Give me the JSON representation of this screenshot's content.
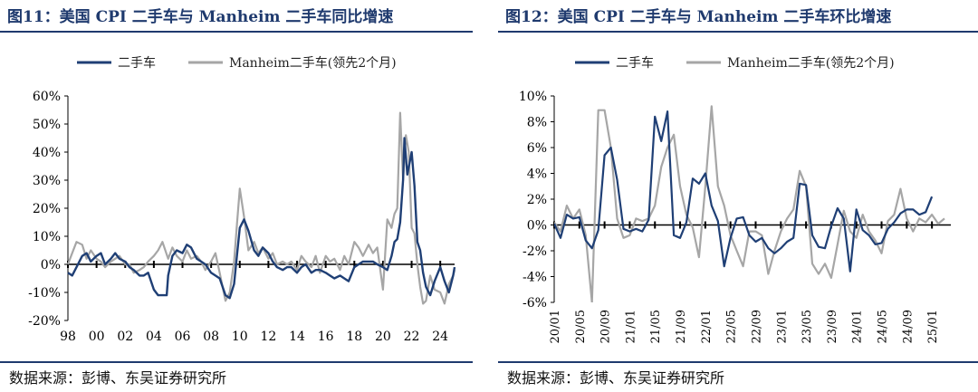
{
  "left": {
    "figure_title": "图11：美国 CPI 二手车与 Manheim 二手车同比增速",
    "source": "数据来源：彭博、东吴证券研究所"
  },
  "right": {
    "figure_title": "图12：美国 CPI 二手车与 Manheim 二手车环比增速",
    "source": "数据来源：彭博、东吴证券研究所"
  },
  "colors": {
    "series1": "#1f3f75",
    "series2": "#a6a6a6",
    "title": "#1f3a6e"
  },
  "chart_data": [
    {
      "type": "line",
      "legend_position": "top",
      "grid": false,
      "ylim": [
        -20,
        60
      ],
      "yticks": [
        -20,
        -10,
        0,
        10,
        20,
        30,
        40,
        50,
        60
      ],
      "ytick_labels": [
        "-20%",
        "-10%",
        "0%",
        "10%",
        "20%",
        "30%",
        "40%",
        "50%",
        "60%"
      ],
      "xlim": [
        1998,
        2025
      ],
      "xticks": [
        1998,
        2000,
        2002,
        2004,
        2006,
        2008,
        2010,
        2012,
        2014,
        2016,
        2018,
        2020,
        2022,
        2024
      ],
      "xtick_labels": [
        "98",
        "00",
        "02",
        "04",
        "06",
        "08",
        "10",
        "12",
        "14",
        "16",
        "18",
        "20",
        "22",
        "24"
      ],
      "series": [
        {
          "name": "二手车",
          "color": "#1f3f75",
          "points": [
            [
              1998.0,
              -3
            ],
            [
              1998.3,
              -4
            ],
            [
              1998.6,
              -1
            ],
            [
              1999.0,
              3
            ],
            [
              1999.3,
              4
            ],
            [
              1999.6,
              1
            ],
            [
              2000.0,
              3
            ],
            [
              2000.3,
              4
            ],
            [
              2000.6,
              0
            ],
            [
              2001.0,
              2
            ],
            [
              2001.3,
              4
            ],
            [
              2001.6,
              2
            ],
            [
              2002.0,
              1
            ],
            [
              2002.3,
              -1
            ],
            [
              2002.6,
              -2
            ],
            [
              2003.0,
              -4
            ],
            [
              2003.3,
              -4
            ],
            [
              2003.6,
              -3
            ],
            [
              2004.0,
              -9
            ],
            [
              2004.3,
              -11
            ],
            [
              2004.6,
              -11
            ],
            [
              2004.9,
              -11
            ],
            [
              2005.0,
              -4
            ],
            [
              2005.3,
              3
            ],
            [
              2005.6,
              5
            ],
            [
              2006.0,
              4
            ],
            [
              2006.3,
              7
            ],
            [
              2006.6,
              6
            ],
            [
              2007.0,
              2
            ],
            [
              2007.3,
              1
            ],
            [
              2007.6,
              0
            ],
            [
              2008.0,
              -3
            ],
            [
              2008.3,
              -4
            ],
            [
              2008.6,
              -5
            ],
            [
              2009.0,
              -11
            ],
            [
              2009.3,
              -12
            ],
            [
              2009.6,
              -7
            ],
            [
              2009.8,
              3
            ],
            [
              2010.0,
              13
            ],
            [
              2010.3,
              16
            ],
            [
              2010.6,
              12
            ],
            [
              2011.0,
              5
            ],
            [
              2011.3,
              3
            ],
            [
              2011.6,
              6
            ],
            [
              2012.0,
              4
            ],
            [
              2012.3,
              1
            ],
            [
              2012.6,
              -1
            ],
            [
              2013.0,
              -2
            ],
            [
              2013.3,
              -1
            ],
            [
              2013.6,
              -1
            ],
            [
              2014.0,
              -3
            ],
            [
              2014.3,
              -1
            ],
            [
              2014.6,
              0
            ],
            [
              2015.0,
              -3
            ],
            [
              2015.3,
              -2
            ],
            [
              2015.6,
              -2
            ],
            [
              2016.0,
              -3
            ],
            [
              2016.3,
              -4
            ],
            [
              2016.6,
              -5
            ],
            [
              2017.0,
              -4
            ],
            [
              2017.3,
              -5
            ],
            [
              2017.6,
              -6
            ],
            [
              2018.0,
              -1
            ],
            [
              2018.3,
              0
            ],
            [
              2018.6,
              1
            ],
            [
              2019.0,
              1
            ],
            [
              2019.3,
              1
            ],
            [
              2019.6,
              0
            ],
            [
              2020.0,
              -1
            ],
            [
              2020.3,
              -2
            ],
            [
              2020.6,
              3
            ],
            [
              2020.8,
              8
            ],
            [
              2021.0,
              9
            ],
            [
              2021.2,
              15
            ],
            [
              2021.4,
              30
            ],
            [
              2021.5,
              45
            ],
            [
              2021.7,
              32
            ],
            [
              2022.0,
              40
            ],
            [
              2022.2,
              28
            ],
            [
              2022.4,
              8
            ],
            [
              2022.6,
              5
            ],
            [
              2022.8,
              -3
            ],
            [
              2023.0,
              -8
            ],
            [
              2023.3,
              -11
            ],
            [
              2023.6,
              -6
            ],
            [
              2024.0,
              -1
            ],
            [
              2024.3,
              -6
            ],
            [
              2024.6,
              -10
            ],
            [
              2024.9,
              -4
            ],
            [
              2025.0,
              -1
            ]
          ]
        },
        {
          "name": "Manheim二手车(领先2个月)",
          "color": "#a6a6a6",
          "points": [
            [
              1998.0,
              0
            ],
            [
              1998.3,
              4
            ],
            [
              1998.6,
              8
            ],
            [
              1999.0,
              7
            ],
            [
              1999.3,
              2
            ],
            [
              1999.6,
              5
            ],
            [
              2000.0,
              2
            ],
            [
              2000.3,
              1
            ],
            [
              2000.6,
              -1
            ],
            [
              2001.0,
              1
            ],
            [
              2001.3,
              2
            ],
            [
              2001.6,
              3
            ],
            [
              2002.0,
              0
            ],
            [
              2002.3,
              0
            ],
            [
              2002.6,
              -3
            ],
            [
              2003.0,
              -2
            ],
            [
              2003.3,
              -1
            ],
            [
              2003.6,
              1
            ],
            [
              2004.0,
              3
            ],
            [
              2004.3,
              5
            ],
            [
              2004.6,
              8
            ],
            [
              2005.0,
              2
            ],
            [
              2005.3,
              6
            ],
            [
              2005.6,
              3
            ],
            [
              2006.0,
              1
            ],
            [
              2006.3,
              5
            ],
            [
              2006.6,
              2
            ],
            [
              2007.0,
              3
            ],
            [
              2007.3,
              1
            ],
            [
              2007.6,
              -2
            ],
            [
              2008.0,
              1
            ],
            [
              2008.3,
              4
            ],
            [
              2008.6,
              -3
            ],
            [
              2009.0,
              -13
            ],
            [
              2009.3,
              -10
            ],
            [
              2009.6,
              1
            ],
            [
              2009.8,
              14
            ],
            [
              2010.0,
              27
            ],
            [
              2010.3,
              17
            ],
            [
              2010.6,
              5
            ],
            [
              2011.0,
              8
            ],
            [
              2011.3,
              4
            ],
            [
              2011.6,
              6
            ],
            [
              2012.0,
              2
            ],
            [
              2012.3,
              4
            ],
            [
              2012.6,
              0
            ],
            [
              2013.0,
              1
            ],
            [
              2013.3,
              0
            ],
            [
              2013.6,
              1
            ],
            [
              2014.0,
              -2
            ],
            [
              2014.3,
              3
            ],
            [
              2014.6,
              1
            ],
            [
              2015.0,
              -1
            ],
            [
              2015.3,
              3
            ],
            [
              2015.6,
              -3
            ],
            [
              2016.0,
              3
            ],
            [
              2016.3,
              1
            ],
            [
              2016.6,
              2
            ],
            [
              2017.0,
              -2
            ],
            [
              2017.3,
              3
            ],
            [
              2017.6,
              0
            ],
            [
              2018.0,
              8
            ],
            [
              2018.3,
              6
            ],
            [
              2018.6,
              3
            ],
            [
              2019.0,
              7
            ],
            [
              2019.3,
              4
            ],
            [
              2019.6,
              6
            ],
            [
              2020.0,
              -9
            ],
            [
              2020.3,
              16
            ],
            [
              2020.6,
              13
            ],
            [
              2020.8,
              18
            ],
            [
              2021.0,
              20
            ],
            [
              2021.2,
              54
            ],
            [
              2021.4,
              30
            ],
            [
              2021.6,
              46
            ],
            [
              2021.8,
              40
            ],
            [
              2022.0,
              13
            ],
            [
              2022.2,
              11
            ],
            [
              2022.4,
              0
            ],
            [
              2022.6,
              -8
            ],
            [
              2022.8,
              -14
            ],
            [
              2023.0,
              -13
            ],
            [
              2023.3,
              -4
            ],
            [
              2023.6,
              -9
            ],
            [
              2024.0,
              -10
            ],
            [
              2024.3,
              -14
            ],
            [
              2024.6,
              -7
            ],
            [
              2024.9,
              -4
            ],
            [
              2025.0,
              -2
            ]
          ]
        }
      ]
    },
    {
      "type": "line",
      "legend_position": "top",
      "grid": false,
      "ylim": [
        -6,
        10
      ],
      "yticks": [
        -6,
        -4,
        -2,
        0,
        2,
        4,
        6,
        8,
        10
      ],
      "ytick_labels": [
        "-6%",
        "-4%",
        "-2%",
        "0%",
        "2%",
        "4%",
        "6%",
        "8%",
        "10%"
      ],
      "x_labels": [
        "20/01",
        "20/05",
        "20/09",
        "21/01",
        "21/05",
        "21/09",
        "22/01",
        "22/05",
        "22/09",
        "23/01",
        "23/05",
        "23/09",
        "24/01",
        "24/05",
        "24/09",
        "25/01"
      ],
      "x_start": "20/01",
      "months": 64,
      "series": [
        {
          "name": "二手车",
          "color": "#1f3f75",
          "values": [
            0.1,
            -1.0,
            0.8,
            0.5,
            0.6,
            -1.2,
            -1.8,
            -0.4,
            5.4,
            6.0,
            3.5,
            -0.3,
            -0.5,
            -0.3,
            -0.5,
            0.4,
            8.4,
            6.5,
            8.8,
            -0.8,
            -1.0,
            0.2,
            3.6,
            3.2,
            4.0,
            1.5,
            0.3,
            -3.2,
            -1.0,
            0.5,
            0.6,
            -0.8,
            -1.3,
            -1.0,
            -1.8,
            -2.2,
            -1.8,
            -1.3,
            -1.0,
            3.2,
            3.1,
            -0.8,
            -1.7,
            -1.8,
            -0.1,
            1.3,
            0.5,
            -3.6,
            1.2,
            -0.4,
            -0.8,
            -1.5,
            -1.4,
            -0.3,
            0.2,
            0.9,
            1.2,
            1.2,
            0.8,
            1.0,
            2.2
          ]
        },
        {
          "name": "Manheim二手车(领先2个月)",
          "color": "#a6a6a6",
          "values": [
            0.2,
            -0.5,
            1.5,
            0.5,
            1.2,
            -0.8,
            -6.0,
            8.9,
            8.9,
            6.0,
            0.5,
            -1.0,
            -0.8,
            0.5,
            0.3,
            0.5,
            1.5,
            4.5,
            6.0,
            7.0,
            3.0,
            0.8,
            -0.2,
            -2.5,
            3.0,
            9.2,
            3.0,
            1.5,
            -0.8,
            -2.0,
            -3.2,
            -0.5,
            -0.5,
            -0.8,
            -3.8,
            -2.0,
            -0.5,
            0.5,
            1.2,
            4.2,
            3.0,
            -3.0,
            -3.8,
            -3.0,
            -4.1,
            -1.5,
            1.1,
            -0.5,
            -1.0,
            0.8,
            -0.5,
            -1.2,
            -2.2,
            0.3,
            0.8,
            2.8,
            0.5,
            -0.5,
            0.5,
            0.2,
            0.8,
            0.1,
            0.5
          ]
        }
      ]
    }
  ]
}
